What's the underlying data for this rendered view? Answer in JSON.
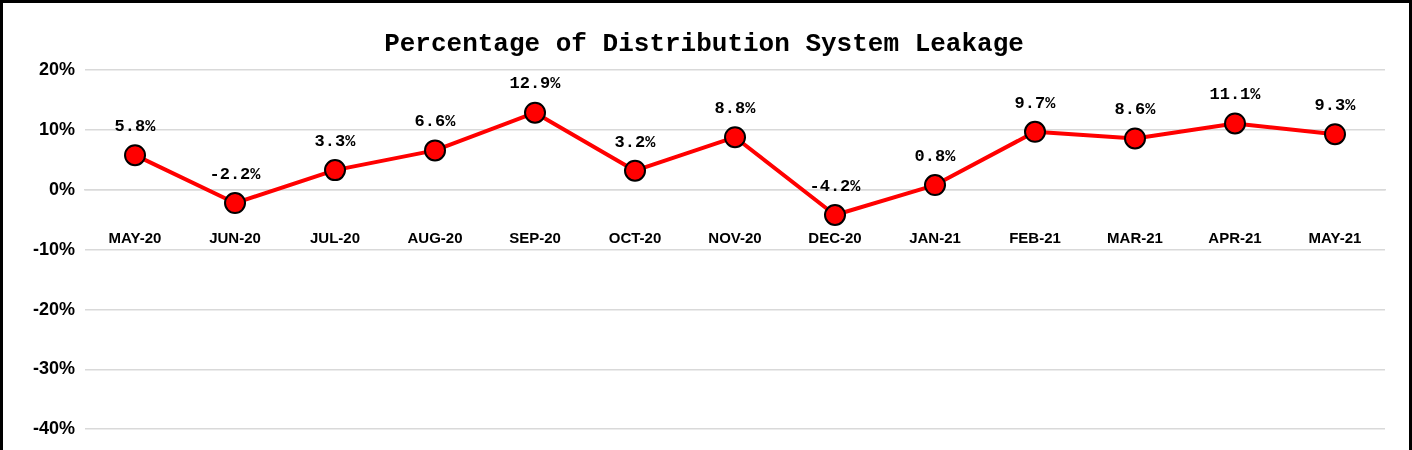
{
  "chart_data": {
    "type": "line",
    "title": "Percentage of Distribution System Leakage",
    "categories": [
      "MAY-20",
      "JUN-20",
      "JUL-20",
      "AUG-20",
      "SEP-20",
      "OCT-20",
      "NOV-20",
      "DEC-20",
      "JAN-21",
      "FEB-21",
      "MAR-21",
      "APR-21",
      "MAY-21"
    ],
    "series": [
      {
        "color": "#ff0000",
        "values": [
          5.8,
          -2.2,
          3.3,
          6.6,
          12.9,
          3.2,
          8.8,
          -4.2,
          0.8,
          9.7,
          8.6,
          11.1,
          9.3
        ],
        "value_labels": [
          "5.8%",
          "-2.2%",
          "3.3%",
          "6.6%",
          "12.9%",
          "3.2%",
          "8.8%",
          "-4.2%",
          "0.8%",
          "9.7%",
          "8.6%",
          "11.1%",
          "9.3%"
        ]
      }
    ],
    "ylim": [
      -40,
      20
    ],
    "yticks": [
      {
        "value": -40,
        "label": "-40%"
      },
      {
        "value": -30,
        "label": "-30%"
      },
      {
        "value": -20,
        "label": "-20%"
      },
      {
        "value": -10,
        "label": "-10%"
      },
      {
        "value": 0,
        "label": "0%"
      },
      {
        "value": 10,
        "label": "10%"
      },
      {
        "value": 20,
        "label": "20%"
      }
    ],
    "grid": "y",
    "legend": false,
    "marker": "circle",
    "line_style": "solid"
  }
}
